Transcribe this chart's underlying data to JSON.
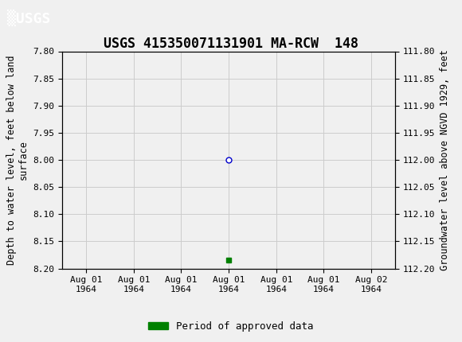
{
  "title": "USGS 415350071131901 MA-RCW  148",
  "header_color": "#006633",
  "left_ylabel": "Depth to water level, feet below land\nsurface",
  "right_ylabel": "Groundwater level above NGVD 1929, feet",
  "ylim_left_top": 7.8,
  "ylim_left_bottom": 8.2,
  "ylim_right_top": 112.2,
  "ylim_right_bottom": 111.8,
  "y_ticks_left": [
    7.8,
    7.85,
    7.9,
    7.95,
    8.0,
    8.05,
    8.1,
    8.15,
    8.2
  ],
  "y_ticks_right": [
    112.2,
    112.15,
    112.1,
    112.05,
    112.0,
    111.95,
    111.9,
    111.85,
    111.8
  ],
  "data_point_x": 3.0,
  "data_point_y": 8.0,
  "green_square_x": 3.0,
  "green_square_y": 8.185,
  "bar_color": "#008000",
  "point_color": "#0000cc",
  "background_color": "#f0f0f0",
  "plot_bg_color": "#f0f0f0",
  "grid_color": "#cccccc",
  "font_color": "#000000",
  "legend_label": "Period of approved data",
  "x_tick_labels": [
    "Aug 01\n1964",
    "Aug 01\n1964",
    "Aug 01\n1964",
    "Aug 01\n1964",
    "Aug 01\n1964",
    "Aug 01\n1964",
    "Aug 02\n1964"
  ],
  "x_tick_positions": [
    0,
    1,
    2,
    3,
    4,
    5,
    6
  ],
  "xlim_left": -0.5,
  "xlim_right": 6.5,
  "title_fontsize": 12,
  "axis_label_fontsize": 8.5,
  "tick_fontsize": 8
}
